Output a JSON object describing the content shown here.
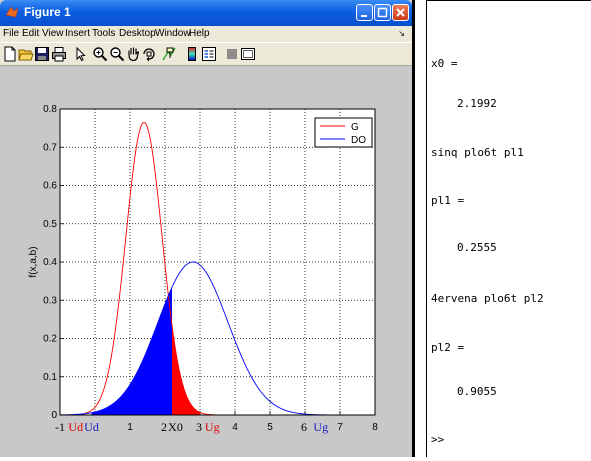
{
  "figure": {
    "title": "Figure 1",
    "menu": [
      "File",
      "Edit",
      "View",
      "Insert",
      "Tools",
      "Desktop",
      "Window",
      "Help"
    ],
    "toolbar_icons": [
      "new-figure-icon",
      "open-file-icon",
      "save-icon",
      "print-icon",
      "pointer-icon",
      "zoom-in-icon",
      "zoom-out-icon",
      "pan-hand-icon",
      "rotate-3d-icon",
      "data-cursor-icon",
      "colorbar-icon",
      "legend-icon",
      "hide-plot-tools-icon",
      "show-plot-tools-icon"
    ],
    "colors": {
      "titlebar": "#0a5ee0",
      "area": "#c8c8c8",
      "G": "#ff0000",
      "DO": "#0000ff"
    }
  },
  "chart_data": {
    "type": "line",
    "title": "",
    "xlabel": "",
    "ylabel": "f(x,a,b)",
    "xlim": [
      -1,
      8
    ],
    "ylim": [
      0,
      0.8
    ],
    "x_ticks": [
      -1,
      0,
      1,
      2,
      3,
      4,
      5,
      6,
      7,
      8
    ],
    "y_ticks": [
      0,
      0.1,
      0.2,
      0.3,
      0.4,
      0.5,
      0.6,
      0.7,
      0.8
    ],
    "y_tick_labels": [
      "0",
      "0.1",
      "0.2",
      "0.3",
      "0.4",
      "0.5",
      "0.6",
      "0.7",
      "0.8"
    ],
    "x_tick_labels": [
      "",
      "",
      "1",
      "",
      "",
      "4",
      "5",
      "",
      "7",
      "8"
    ],
    "grid": true,
    "legend": "top-right",
    "series": [
      {
        "name": "G",
        "color": "#ff0000",
        "mean": 1.4,
        "sd": 0.52,
        "peak": 0.765
      },
      {
        "name": "DO",
        "color": "#0000ff",
        "mean": 2.8,
        "sd": 1.0,
        "peak": 0.4
      }
    ],
    "shaded_regions": [
      {
        "series": "DO",
        "from": -0.1,
        "to": 2.2,
        "color": "#0000ff"
      },
      {
        "series": "G",
        "from": 2.2,
        "to": 3.0,
        "color": "#ff0000"
      }
    ],
    "annotations": [
      {
        "text": "-1",
        "x": -1,
        "color": "#000000"
      },
      {
        "text": "Ud",
        "x": -0.55,
        "color": "#e00000"
      },
      {
        "text": "Ud",
        "x": -0.1,
        "color": "#1a1ac8"
      },
      {
        "text": "2",
        "x": 1.97,
        "color": "#000000"
      },
      {
        "text": "X0",
        "x": 2.3,
        "color": "#000000"
      },
      {
        "text": "3",
        "x": 2.97,
        "color": "#000000"
      },
      {
        "text": "Ug",
        "x": 3.35,
        "color": "#e00000"
      },
      {
        "text": "6",
        "x": 5.97,
        "color": "#000000"
      },
      {
        "text": "Ug",
        "x": 6.45,
        "color": "#1a1ac8"
      }
    ]
  },
  "command_window": {
    "lines": [
      "x0 =",
      "2.1992",
      "sinq plo6t pl1",
      "pl1 =",
      "0.2555",
      "4ervena plo6t pl2",
      "pl2 =",
      "0.9055",
      ">>"
    ]
  }
}
